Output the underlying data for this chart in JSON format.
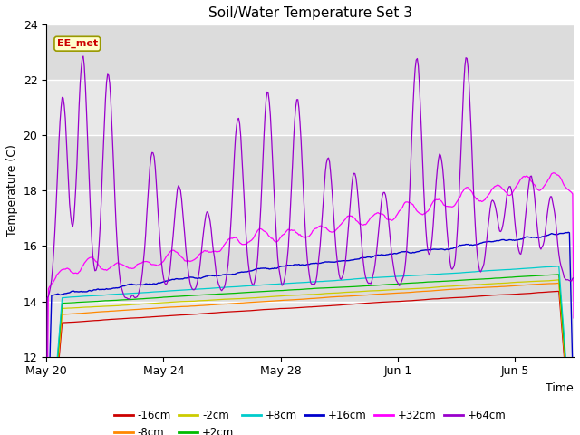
{
  "title": "Soil/Water Temperature Set 3",
  "xlabel": "Time",
  "ylabel": "Temperature (C)",
  "ylim": [
    12,
    24
  ],
  "yticks": [
    12,
    14,
    16,
    18,
    20,
    22,
    24
  ],
  "bg_color": "#dcdcdc",
  "stripe_color": "#c8c8c8",
  "label_box_text": "EE_met",
  "label_box_bg": "#ffffcc",
  "label_box_border": "#999900",
  "label_box_text_color": "#cc0000",
  "series_colors": {
    "-16cm": "#cc0000",
    "-8cm": "#ff8800",
    "-2cm": "#cccc00",
    "+2cm": "#00bb00",
    "+8cm": "#00cccc",
    "+16cm": "#0000cc",
    "+32cm": "#ff00ff",
    "+64cm": "#9900cc"
  },
  "x_ticks_pos": [
    0,
    4,
    8,
    12,
    16
  ],
  "x_ticks_labels": [
    "May 20",
    "May 24",
    "May 28",
    "Jun 1",
    "Jun 5"
  ],
  "xlim": [
    0,
    18
  ],
  "n_points": 500,
  "seed": 42,
  "legend_row1": [
    "-16cm",
    "-8cm",
    "-2cm",
    "+2cm",
    "+8cm",
    "+16cm"
  ],
  "legend_row2": [
    "+32cm",
    "+64cm"
  ]
}
